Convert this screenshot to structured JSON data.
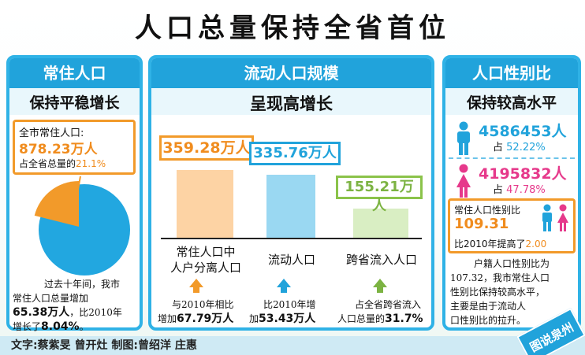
{
  "title": "人口总量保持全省首位",
  "colors": {
    "accent": "#21a3db",
    "orange": "#f08c1e",
    "pink": "#e6398b",
    "green": "#7cb342"
  },
  "panel_resident": {
    "header": "常住人口",
    "subheader": "保持平稳增长",
    "callout_label": "全市常住人口:",
    "callout_value": "878.23万人",
    "share_prefix": "占全省总量的",
    "share_value": "21.1%",
    "pie_share": 0.211,
    "note_line1": "过去十年间，我市",
    "note_line2": "常住人口总量增加",
    "note_value1": "65.38万人",
    "note_line3": "，比2010年",
    "note_line4": "增长了",
    "note_value2": "8.04%",
    "note_end": "。"
  },
  "panel_floating": {
    "header": "流动人口规模",
    "subheader": "呈现高增长",
    "chart_data": {
      "type": "bar",
      "categories": [
        "常住人口中人户分离人口",
        "流动人口",
        "跨省流入人口"
      ],
      "values": [
        359.28,
        335.76,
        155.21
      ],
      "labels": [
        "359.28万人",
        "335.76万人",
        "155.21万人"
      ]
    },
    "cat1_line1": "常住人口中",
    "cat1_line2": "人户分离人口",
    "cat2": "流动人口",
    "cat3": "跨省流入人口",
    "note1_a": "与2010年相比",
    "note1_b": "增加",
    "note1_value": "67.79万人",
    "note2_a": "比2010年增",
    "note2_b": "加",
    "note2_value": "53.43万人",
    "note3_a": "占全省跨省流入",
    "note3_b": "人口总量的",
    "note3_value": "31.7%"
  },
  "panel_sex": {
    "header": "人口性别比",
    "subheader": "保持较高水平",
    "male_count": "4586453人",
    "male_share_prefix": "占",
    "male_share": "52.22%",
    "female_count": "4195832人",
    "female_share_prefix": "占",
    "female_share": "47.78%",
    "ratio_label": "常住人口性别比",
    "ratio_value": "109.31",
    "ratio_change_prefix": "比2010年提高了",
    "ratio_change": "2.00",
    "note_line1": "户籍人口性别比为",
    "note_line2": "107.32，我市常住人口",
    "note_line3": "性别比保持较高水平，",
    "note_line4": "主要是由于流动人",
    "note_line5": "口性别比的拉升。"
  },
  "footer": {
    "credits": "文字:蔡紫旻  曾开灶    制图:曾绍洋  庄惠",
    "stamp": "图说泉州"
  }
}
